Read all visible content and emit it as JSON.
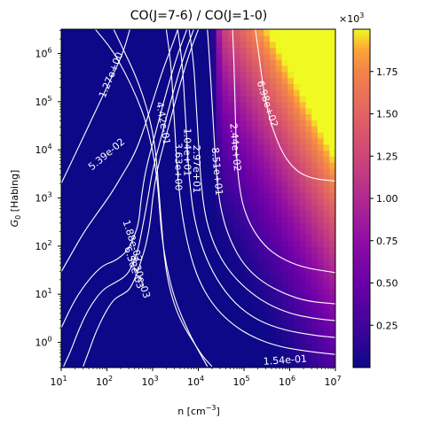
{
  "chart_data": {
    "type": "heatmap",
    "title": "CO(J=7-6) / CO(J=1-0)",
    "xlabel_base": "n [cm",
    "xlabel_sup": "−3",
    "xlabel_end": "]",
    "ylabel_sym": "G",
    "ylabel_sub": "0",
    "ylabel_rest": " [Habing]",
    "x_scale": "log",
    "y_scale": "log",
    "xlim": [
      10,
      10000000
    ],
    "ylim": [
      0.3,
      3200000
    ],
    "x_ticks": [
      {
        "value": 10,
        "base": "10",
        "exp": "1"
      },
      {
        "value": 100,
        "base": "10",
        "exp": "2"
      },
      {
        "value": 1000,
        "base": "10",
        "exp": "3"
      },
      {
        "value": 10000,
        "base": "10",
        "exp": "4"
      },
      {
        "value": 100000,
        "base": "10",
        "exp": "5"
      },
      {
        "value": 1000000,
        "base": "10",
        "exp": "6"
      },
      {
        "value": 10000000,
        "base": "10",
        "exp": "7"
      }
    ],
    "y_ticks": [
      {
        "value": 1,
        "base": "10",
        "exp": "0"
      },
      {
        "value": 10,
        "base": "10",
        "exp": "1"
      },
      {
        "value": 100,
        "base": "10",
        "exp": "2"
      },
      {
        "value": 1000,
        "base": "10",
        "exp": "3"
      },
      {
        "value": 10000,
        "base": "10",
        "exp": "4"
      },
      {
        "value": 100000,
        "base": "10",
        "exp": "5"
      },
      {
        "value": 1000000,
        "base": "10",
        "exp": "6"
      }
    ],
    "colorbar": {
      "colormap": "plasma",
      "range": [
        0,
        2000
      ],
      "multiplier_base": "×10",
      "multiplier_exp": "3",
      "ticks": [
        {
          "value": 250,
          "label": "0.25"
        },
        {
          "value": 500,
          "label": "0.50"
        },
        {
          "value": 750,
          "label": "0.75"
        },
        {
          "value": 1000,
          "label": "1.00"
        },
        {
          "value": 1250,
          "label": "1.25"
        },
        {
          "value": 1500,
          "label": "1.50"
        },
        {
          "value": 1750,
          "label": "1.75"
        }
      ]
    },
    "contours": [
      {
        "label": "2.30e-03",
        "path": [
          [
            1.48,
            -0.5
          ],
          [
            1.6,
            -0.2
          ],
          [
            1.75,
            0.2
          ],
          [
            1.95,
            0.6
          ],
          [
            2.15,
            0.9
          ],
          [
            2.35,
            1.0
          ],
          [
            2.5,
            1.1
          ],
          [
            2.65,
            1.4
          ],
          [
            2.75,
            1.7
          ],
          [
            2.85,
            2.0
          ],
          [
            2.95,
            2.5
          ],
          [
            3.0,
            3.0
          ],
          [
            3.1,
            3.6
          ],
          [
            3.3,
            4.3
          ],
          [
            3.55,
            5.2
          ],
          [
            3.8,
            6.0
          ],
          [
            4.0,
            6.5
          ]
        ],
        "label_at": [
          2.72,
          1.35
        ],
        "label_rot": 72
      },
      {
        "label": "6.58e-03",
        "path": [
          [
            1.05,
            -0.5
          ],
          [
            1.2,
            -0.2
          ],
          [
            1.4,
            0.3
          ],
          [
            1.6,
            0.7
          ],
          [
            1.9,
            1.1
          ],
          [
            2.2,
            1.25
          ],
          [
            2.45,
            1.4
          ],
          [
            2.6,
            1.7
          ],
          [
            2.7,
            2.0
          ],
          [
            2.8,
            2.5
          ],
          [
            2.9,
            3.0
          ],
          [
            3.0,
            3.6
          ],
          [
            3.2,
            4.3
          ],
          [
            3.45,
            5.2
          ],
          [
            3.7,
            6.0
          ],
          [
            3.9,
            6.5
          ]
        ],
        "label_at": [
          2.58,
          1.55
        ],
        "label_rot": 72
      },
      {
        "label": "1.88e-02",
        "path": [
          [
            0.6,
            -0.5
          ],
          [
            0.8,
            -0.1
          ],
          [
            1.0,
            0.3
          ],
          [
            1.3,
            0.9
          ],
          [
            1.6,
            1.3
          ],
          [
            1.9,
            1.6
          ],
          [
            2.2,
            1.7
          ],
          [
            2.45,
            1.9
          ],
          [
            2.6,
            2.2
          ],
          [
            2.7,
            2.5
          ],
          [
            2.75,
            3.0
          ],
          [
            2.85,
            3.6
          ],
          [
            3.05,
            4.3
          ],
          [
            3.3,
            5.2
          ],
          [
            3.55,
            6.0
          ],
          [
            3.75,
            6.5
          ]
        ],
        "label_at": [
          2.55,
          2.1
        ],
        "label_rot": 72
      },
      {
        "label": "5.39e-02",
        "path": [
          [
            0.0,
            -0.4
          ],
          [
            0.3,
            0.0
          ],
          [
            0.6,
            0.6
          ],
          [
            0.9,
            1.3
          ],
          [
            1.2,
            1.8
          ],
          [
            1.5,
            2.3
          ],
          [
            1.8,
            2.7
          ],
          [
            2.1,
            3.1
          ],
          [
            2.35,
            3.5
          ],
          [
            2.6,
            3.9
          ],
          [
            2.8,
            4.4
          ],
          [
            3.0,
            5.0
          ],
          [
            3.2,
            5.6
          ],
          [
            3.4,
            6.1
          ],
          [
            3.55,
            6.5
          ]
        ],
        "label_at": [
          2.0,
          3.9
        ],
        "label_rot": -40
      },
      {
        "label": "1.54e-01",
        "path": [
          [
            0.0,
            1.3
          ],
          [
            0.3,
            1.9
          ],
          [
            0.6,
            2.5
          ],
          [
            0.85,
            3.0
          ],
          [
            1.1,
            3.5
          ],
          [
            1.35,
            4.0
          ],
          [
            1.6,
            4.5
          ],
          [
            1.85,
            5.0
          ],
          [
            2.1,
            5.5
          ],
          [
            2.35,
            6.0
          ],
          [
            2.5,
            6.5
          ]
        ],
        "label_at": null,
        "label_rot": 0
      },
      {
        "label": "4.42e-01",
        "path": [
          [
            2.15,
            6.5
          ],
          [
            2.4,
            6.0
          ],
          [
            2.6,
            5.6
          ],
          [
            2.8,
            5.1
          ],
          [
            2.95,
            4.6
          ],
          [
            3.05,
            4.1
          ],
          [
            3.1,
            3.6
          ],
          [
            3.15,
            3.0
          ],
          [
            3.2,
            2.4
          ],
          [
            3.25,
            1.8
          ],
          [
            3.35,
            1.2
          ],
          [
            3.5,
            0.7
          ],
          [
            3.7,
            0.3
          ],
          [
            3.9,
            0.0
          ],
          [
            4.1,
            -0.3
          ],
          [
            4.3,
            -0.5
          ]
        ],
        "label_at": [
          3.22,
          4.55
        ],
        "label_rot": 80
      },
      {
        "label": "1.27e+00",
        "path": [
          [
            1.75,
            6.5
          ],
          [
            2.1,
            6.1
          ],
          [
            2.4,
            5.6
          ],
          [
            2.65,
            5.1
          ],
          [
            2.85,
            4.6
          ],
          [
            3.0,
            4.0
          ],
          [
            3.1,
            3.4
          ],
          [
            3.15,
            2.8
          ],
          [
            3.2,
            2.2
          ],
          [
            3.3,
            1.6
          ],
          [
            3.45,
            1.0
          ],
          [
            3.65,
            0.5
          ],
          [
            3.9,
            0.0
          ],
          [
            4.2,
            -0.5
          ]
        ],
        "label_at": [
          2.1,
          5.55
        ],
        "label_rot": -68
      },
      {
        "label": "3.63e+00",
        "path": [
          [
            3.3,
            6.5
          ],
          [
            3.4,
            5.8
          ],
          [
            3.45,
            5.0
          ],
          [
            3.5,
            4.2
          ],
          [
            3.55,
            3.4
          ],
          [
            3.65,
            2.6
          ],
          [
            3.8,
            1.9
          ],
          [
            4.0,
            1.3
          ],
          [
            4.3,
            0.8
          ],
          [
            4.7,
            0.4
          ],
          [
            5.2,
            0.1
          ],
          [
            5.8,
            -0.1
          ],
          [
            6.5,
            -0.2
          ],
          [
            7.0,
            -0.25
          ]
        ],
        "label_at": [
          3.55,
          3.65
        ],
        "label_rot": 90
      },
      {
        "label": "1.04e+01",
        "path": [
          [
            3.55,
            6.5
          ],
          [
            3.65,
            5.8
          ],
          [
            3.7,
            5.0
          ],
          [
            3.75,
            4.2
          ],
          [
            3.8,
            3.4
          ],
          [
            3.9,
            2.6
          ],
          [
            4.1,
            1.9
          ],
          [
            4.4,
            1.3
          ],
          [
            4.8,
            0.8
          ],
          [
            5.3,
            0.45
          ],
          [
            5.9,
            0.25
          ],
          [
            6.5,
            0.15
          ],
          [
            7.0,
            0.1
          ]
        ],
        "label_at": [
          3.75,
          3.95
        ],
        "label_rot": 90
      },
      {
        "label": "2.97e+01",
        "path": [
          [
            3.8,
            6.5
          ],
          [
            3.9,
            5.8
          ],
          [
            3.95,
            5.0
          ],
          [
            4.0,
            4.2
          ],
          [
            4.05,
            3.4
          ],
          [
            4.15,
            2.6
          ],
          [
            4.35,
            2.0
          ],
          [
            4.65,
            1.5
          ],
          [
            5.05,
            1.1
          ],
          [
            5.5,
            0.8
          ],
          [
            6.0,
            0.6
          ],
          [
            6.5,
            0.5
          ],
          [
            7.0,
            0.45
          ]
        ],
        "label_at": [
          3.95,
          3.6
        ],
        "label_rot": 90
      },
      {
        "label": "8.51e+01",
        "path": [
          [
            4.2,
            6.5
          ],
          [
            4.25,
            5.8
          ],
          [
            4.3,
            5.0
          ],
          [
            4.35,
            4.2
          ],
          [
            4.4,
            3.4
          ],
          [
            4.5,
            2.7
          ],
          [
            4.7,
            2.1
          ],
          [
            5.0,
            1.6
          ],
          [
            5.4,
            1.25
          ],
          [
            5.9,
            1.0
          ],
          [
            6.4,
            0.85
          ],
          [
            7.0,
            0.8
          ]
        ],
        "label_at": [
          4.4,
          3.55
        ],
        "label_rot": 85
      },
      {
        "label": "2.44e+02",
        "path": [
          [
            4.75,
            6.5
          ],
          [
            4.78,
            5.8
          ],
          [
            4.8,
            5.1
          ],
          [
            4.82,
            4.4
          ],
          [
            4.85,
            3.6
          ],
          [
            4.95,
            2.9
          ],
          [
            5.15,
            2.4
          ],
          [
            5.45,
            2.0
          ],
          [
            5.8,
            1.75
          ],
          [
            6.3,
            1.55
          ],
          [
            7.0,
            1.45
          ]
        ],
        "label_at": [
          4.8,
          4.05
        ],
        "label_rot": 85
      },
      {
        "label": "6.98e+02",
        "path": [
          [
            5.25,
            6.5
          ],
          [
            5.35,
            5.8
          ],
          [
            5.45,
            5.1
          ],
          [
            5.6,
            4.5
          ],
          [
            5.85,
            3.9
          ],
          [
            6.15,
            3.55
          ],
          [
            6.5,
            3.4
          ],
          [
            7.0,
            3.35
          ]
        ],
        "label_at": [
          5.5,
          4.95
        ],
        "label_rot": 72
      }
    ]
  }
}
